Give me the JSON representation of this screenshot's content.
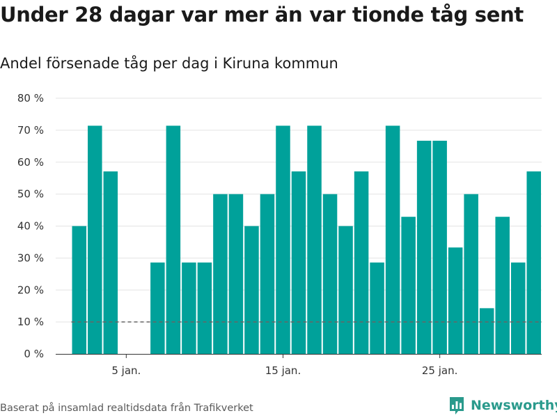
{
  "title": "Under 28 dagar var mer än var tionde tåg sent",
  "subtitle": "Andel försenade tåg per dag i Kiruna kommun",
  "source": "Baserat på insamlad realtidsdata från Trafikverket",
  "brand": {
    "name": "Newsworthy",
    "icon": "bar-chart-logo-icon",
    "color": "#2a9a8c"
  },
  "chart_data": {
    "type": "bar",
    "x": [
      1,
      2,
      3,
      4,
      5,
      6,
      7,
      8,
      9,
      10,
      11,
      12,
      13,
      14,
      15,
      16,
      17,
      18,
      19,
      20,
      21,
      22,
      23,
      24,
      25,
      26,
      27,
      28,
      29,
      30,
      31
    ],
    "values": [
      null,
      40,
      71.4,
      57.1,
      0,
      0,
      28.6,
      71.4,
      28.6,
      28.6,
      50,
      50,
      40,
      50,
      71.4,
      57.1,
      71.4,
      50,
      40,
      57.1,
      28.6,
      71.4,
      42.9,
      66.7,
      66.7,
      33.3,
      50,
      14.3,
      42.9,
      28.6,
      57.1
    ],
    "xticks": [
      {
        "x": 5,
        "label": "5 jan."
      },
      {
        "x": 15,
        "label": "15 jan."
      },
      {
        "x": 25,
        "label": "25 jan."
      }
    ],
    "yticks": [
      0,
      10,
      20,
      30,
      40,
      50,
      60,
      70,
      80
    ],
    "ytick_labels": [
      "0 %",
      "10 %",
      "20 %",
      "30 %",
      "40 %",
      "50 %",
      "60 %",
      "70 %",
      "80 %"
    ],
    "ylim": [
      0,
      80
    ],
    "xlim": [
      0.5,
      31.5
    ],
    "threshold": {
      "value": 10,
      "style": "dashed",
      "x_start": 2,
      "x_end": 31
    },
    "xlabel": "",
    "ylabel": "",
    "grid": true,
    "bar_color": "#00a19a"
  }
}
